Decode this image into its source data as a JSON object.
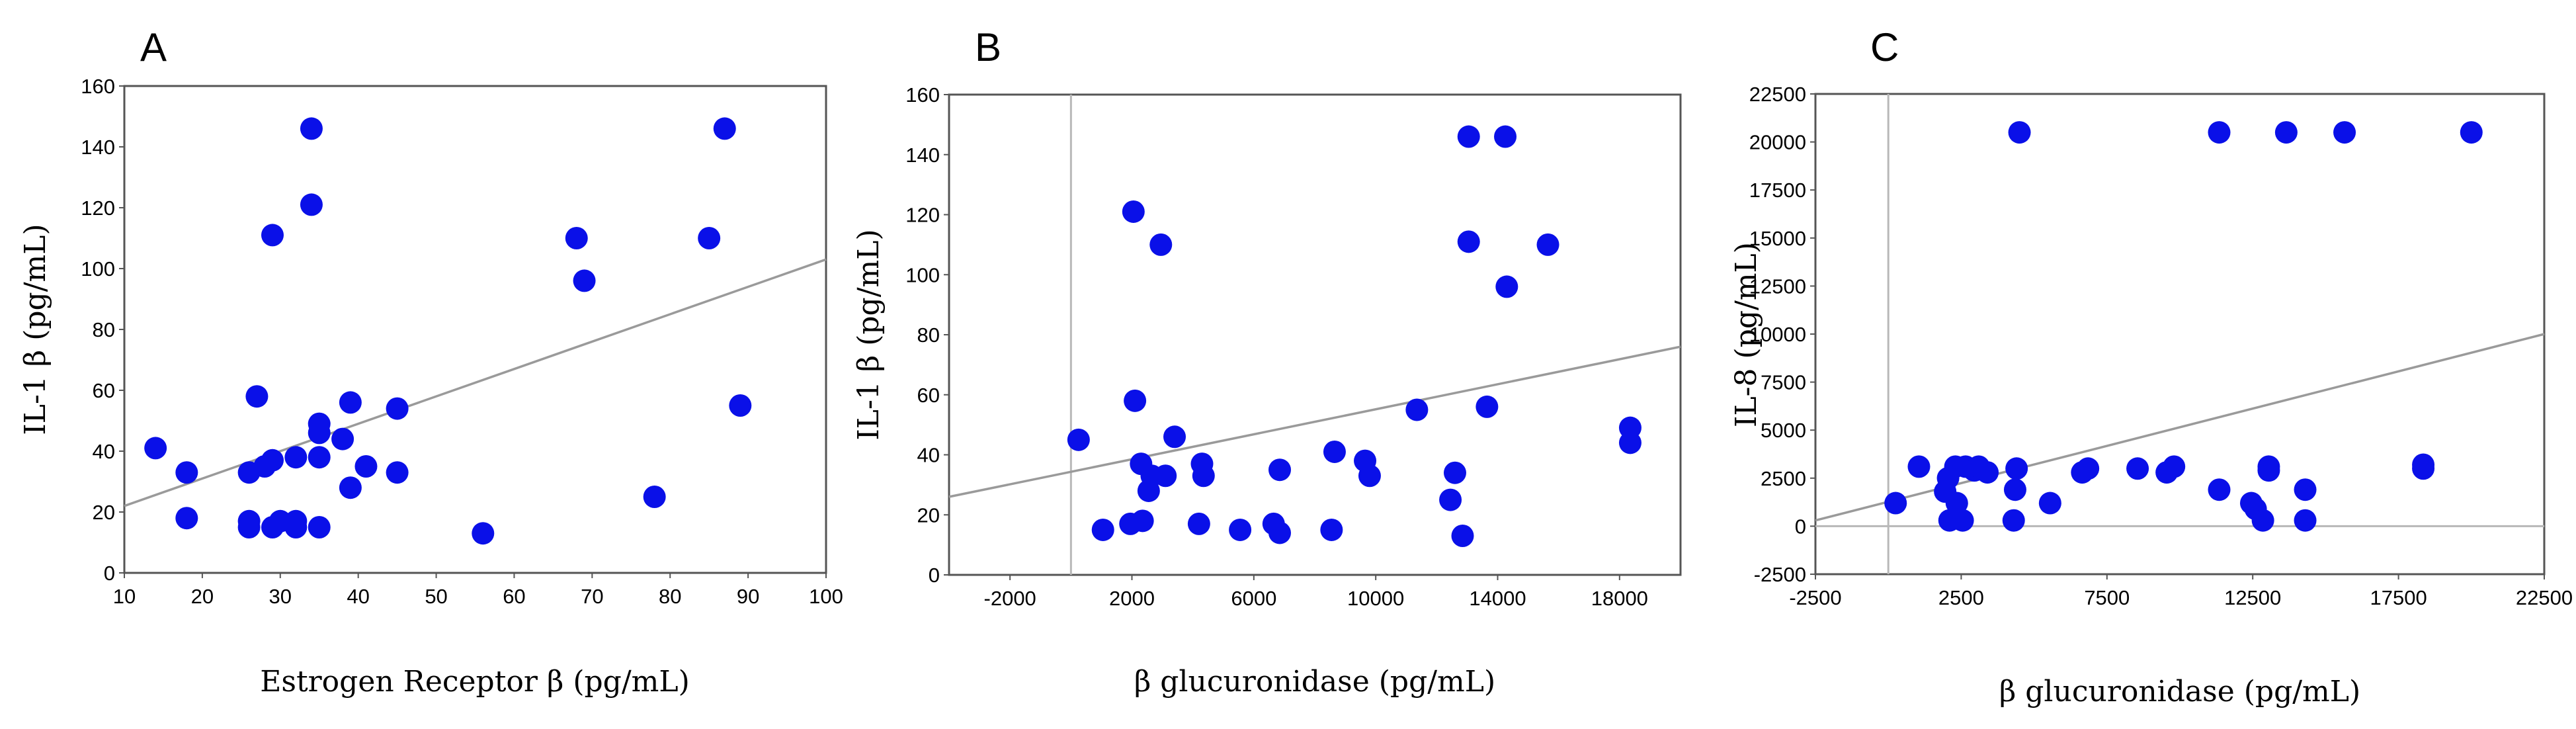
{
  "colors": {
    "points": "#0a10e8",
    "fit": "#9a9a9a",
    "zero": "#b8b8b8",
    "frame": "#555555"
  },
  "chart_data": [
    {
      "type": "scatter",
      "panel": "A",
      "xlabel": "Estrogen Receptor β (pg/mL)",
      "ylabel": "IL-1 β (pg/mL)",
      "xlim": [
        10,
        100
      ],
      "ylim": [
        0,
        160
      ],
      "xticks": [
        10,
        20,
        30,
        40,
        50,
        60,
        70,
        80,
        90,
        100
      ],
      "yticks": [
        0,
        20,
        40,
        60,
        80,
        100,
        120,
        140,
        160
      ],
      "xtick_labels": [
        "10",
        "20",
        "30",
        "40",
        "50",
        "60",
        "70",
        "80",
        "90",
        "100"
      ],
      "ytick_labels": [
        "0",
        "20",
        "40",
        "60",
        "80",
        "100",
        "120",
        "140",
        "160"
      ],
      "fit_line": [
        [
          10,
          22
        ],
        [
          100,
          103
        ]
      ],
      "zero_lines": {
        "x": false,
        "y": false
      },
      "points": [
        [
          14,
          41
        ],
        [
          18,
          33
        ],
        [
          18,
          18
        ],
        [
          26,
          33
        ],
        [
          26,
          17
        ],
        [
          26,
          15
        ],
        [
          27,
          58
        ],
        [
          28,
          35
        ],
        [
          29,
          37
        ],
        [
          29,
          15
        ],
        [
          29,
          111
        ],
        [
          30,
          17
        ],
        [
          32,
          38
        ],
        [
          32,
          17
        ],
        [
          32,
          15
        ],
        [
          34,
          146
        ],
        [
          34,
          121
        ],
        [
          35,
          49
        ],
        [
          35,
          46
        ],
        [
          35,
          38
        ],
        [
          35,
          15
        ],
        [
          38,
          44
        ],
        [
          39,
          56
        ],
        [
          39,
          28
        ],
        [
          41,
          35
        ],
        [
          45,
          54
        ],
        [
          45,
          33
        ],
        [
          56,
          13
        ],
        [
          68,
          110
        ],
        [
          69,
          96
        ],
        [
          78,
          25
        ],
        [
          85,
          110
        ],
        [
          87,
          146
        ],
        [
          89,
          55
        ]
      ]
    },
    {
      "type": "scatter",
      "panel": "B",
      "xlabel": "β glucuronidase (pg/mL)",
      "ylabel": "IL-1 β (pg/mL)",
      "xlim": [
        -4000,
        20000
      ],
      "ylim": [
        0,
        160
      ],
      "xticks": [
        -2000,
        2000,
        6000,
        10000,
        14000,
        18000
      ],
      "yticks": [
        0,
        20,
        40,
        60,
        80,
        100,
        120,
        140,
        160
      ],
      "xtick_labels": [
        "-2000",
        "2000",
        "6000",
        "10000",
        "14000",
        "18000"
      ],
      "ytick_labels": [
        "0",
        "20",
        "40",
        "60",
        "80",
        "100",
        "120",
        "140",
        "160"
      ],
      "fit_line": [
        [
          -4000,
          26
        ],
        [
          20000,
          76
        ]
      ],
      "zero_lines": {
        "x": true,
        "y": false
      },
      "points": [
        [
          250,
          45
        ],
        [
          1050,
          15
        ],
        [
          1950,
          17
        ],
        [
          2050,
          121
        ],
        [
          2100,
          58
        ],
        [
          2300,
          37
        ],
        [
          2350,
          18
        ],
        [
          2550,
          28
        ],
        [
          2650,
          33
        ],
        [
          2950,
          110
        ],
        [
          3100,
          33
        ],
        [
          3400,
          46
        ],
        [
          4200,
          17
        ],
        [
          4300,
          37
        ],
        [
          4350,
          33
        ],
        [
          5550,
          15
        ],
        [
          6650,
          17
        ],
        [
          6850,
          14
        ],
        [
          6850,
          35
        ],
        [
          8550,
          15
        ],
        [
          8650,
          41
        ],
        [
          9650,
          38
        ],
        [
          9800,
          33
        ],
        [
          11350,
          55
        ],
        [
          12450,
          25
        ],
        [
          12600,
          34
        ],
        [
          12850,
          13
        ],
        [
          13050,
          111
        ],
        [
          13050,
          146
        ],
        [
          13650,
          56
        ],
        [
          14250,
          146
        ],
        [
          14300,
          96
        ],
        [
          15650,
          110
        ],
        [
          18350,
          49
        ],
        [
          18350,
          44
        ]
      ]
    },
    {
      "type": "scatter",
      "panel": "C",
      "xlabel": "β glucuronidase (pg/mL)",
      "ylabel": "IL-8 (pg/mL)",
      "xlim": [
        -2500,
        22500
      ],
      "ylim": [
        -2500,
        22500
      ],
      "xticks": [
        -2500,
        2500,
        7500,
        12500,
        17500,
        22500
      ],
      "yticks": [
        -2500,
        0,
        2500,
        5000,
        7500,
        10000,
        12500,
        15000,
        17500,
        20000,
        22500
      ],
      "xtick_labels": [
        "-2500",
        "2500",
        "7500",
        "12500",
        "17500",
        "22500"
      ],
      "ytick_labels": [
        "-2500",
        "0",
        "2500",
        "5000",
        "7500",
        "10000",
        "12500",
        "15000",
        "17500",
        "20000",
        "22500"
      ],
      "fit_line": [
        [
          -2500,
          300
        ],
        [
          22500,
          10000
        ]
      ],
      "zero_lines": {
        "x": true,
        "y": true
      },
      "points": [
        [
          250,
          1200
        ],
        [
          1050,
          3100
        ],
        [
          1950,
          1800
        ],
        [
          2050,
          2500
        ],
        [
          2100,
          300
        ],
        [
          2300,
          3100
        ],
        [
          2350,
          1200
        ],
        [
          2550,
          300
        ],
        [
          2650,
          3100
        ],
        [
          2950,
          2900
        ],
        [
          3100,
          3100
        ],
        [
          3400,
          2800
        ],
        [
          4300,
          300
        ],
        [
          4350,
          1900
        ],
        [
          4400,
          3000
        ],
        [
          4500,
          20500
        ],
        [
          5550,
          1200
        ],
        [
          6650,
          2800
        ],
        [
          6850,
          3000
        ],
        [
          8550,
          3000
        ],
        [
          9550,
          2800
        ],
        [
          9800,
          3100
        ],
        [
          11350,
          1900
        ],
        [
          11350,
          20500
        ],
        [
          12450,
          1200
        ],
        [
          12600,
          900
        ],
        [
          12850,
          300
        ],
        [
          13050,
          2900
        ],
        [
          13050,
          3100
        ],
        [
          13650,
          20500
        ],
        [
          14300,
          300
        ],
        [
          14300,
          1900
        ],
        [
          15650,
          20500
        ],
        [
          18350,
          3000
        ],
        [
          18350,
          3200
        ],
        [
          20000,
          20500
        ]
      ]
    }
  ]
}
